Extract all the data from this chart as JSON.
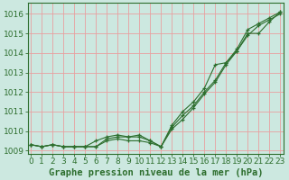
{
  "xlabel": "Graphe pression niveau de la mer (hPa)",
  "bg_color": "#cce8e0",
  "grid_color": "#e8a0a0",
  "line_color": "#2d6e2d",
  "x_ticks": [
    0,
    1,
    2,
    3,
    4,
    5,
    6,
    7,
    8,
    9,
    10,
    11,
    12,
    13,
    14,
    15,
    16,
    17,
    18,
    19,
    20,
    21,
    22,
    23
  ],
  "ylim_min": 1009.0,
  "ylim_max": 1016.5,
  "yticks": [
    1009,
    1010,
    1011,
    1012,
    1013,
    1014,
    1015,
    1016
  ],
  "series": [
    [
      1009.3,
      1009.2,
      1009.3,
      1009.2,
      1009.2,
      1009.2,
      1009.2,
      1009.5,
      1009.6,
      1009.5,
      1009.5,
      1009.4,
      1009.2,
      1010.1,
      1010.6,
      1011.2,
      1011.9,
      1012.5,
      1013.4,
      1014.1,
      1015.0,
      1015.0,
      1015.6,
      1016.1
    ],
    [
      1009.3,
      1009.2,
      1009.3,
      1009.2,
      1009.2,
      1009.2,
      1009.2,
      1009.6,
      1009.7,
      1009.7,
      1009.7,
      1009.5,
      1009.2,
      1010.3,
      1011.0,
      1011.5,
      1012.2,
      1013.4,
      1013.5,
      1014.2,
      1015.2,
      1015.5,
      1015.8,
      1016.1
    ],
    [
      1009.3,
      1009.2,
      1009.3,
      1009.2,
      1009.2,
      1009.2,
      1009.5,
      1009.7,
      1009.8,
      1009.7,
      1009.8,
      1009.5,
      1009.2,
      1010.2,
      1010.8,
      1011.3,
      1012.0,
      1012.6,
      1013.5,
      1014.1,
      1014.9,
      1015.4,
      1015.7,
      1016.0
    ]
  ],
  "tick_fontsize": 6.5,
  "xlabel_fontsize": 7.5,
  "fig_width": 3.2,
  "fig_height": 2.0
}
